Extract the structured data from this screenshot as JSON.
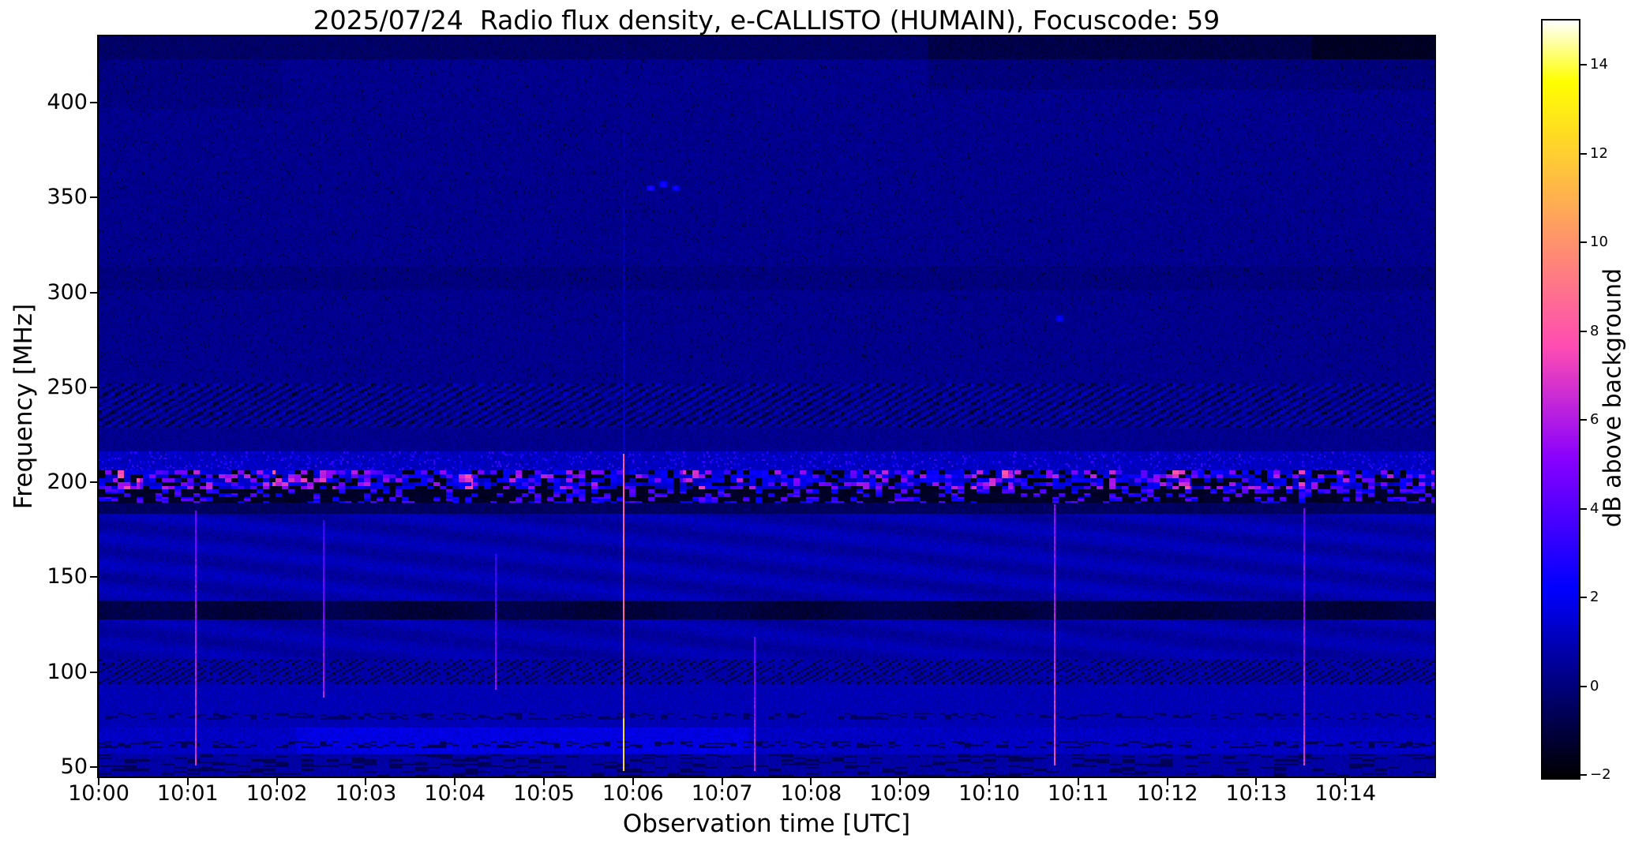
{
  "figure": {
    "background": "#ffffff"
  },
  "observation": {
    "date": "2025/07/24",
    "instrument": "e-CALLISTO",
    "station": "HUMAIN",
    "focuscode": "59",
    "start_time_utc": "10:00",
    "end_time_utc": "10:15"
  },
  "chart_data": {
    "type": "heatmap",
    "title": "2025/07/24  Radio flux density, e-CALLISTO (HUMAIN), Focuscode: 59",
    "xlabel": "Observation time [UTC]",
    "ylabel": "Frequency [MHz]",
    "colorbar_label": "dB above background",
    "colormap": "gnuplot2",
    "value_range": [
      -2,
      15
    ],
    "colorbar_ticks": [
      -2,
      0,
      2,
      4,
      6,
      8,
      10,
      12,
      14
    ],
    "x_range_minutes": [
      0,
      15
    ],
    "x_ticks": [
      "10:00",
      "10:01",
      "10:02",
      "10:03",
      "10:04",
      "10:05",
      "10:06",
      "10:07",
      "10:08",
      "10:09",
      "10:10",
      "10:11",
      "10:12",
      "10:13",
      "10:14"
    ],
    "y_range_mhz": [
      45,
      435
    ],
    "y_ticks": [
      50,
      100,
      150,
      200,
      250,
      300,
      350,
      400
    ],
    "background_level_db": 0.8,
    "features": {
      "horizontal_bands": [
        {
          "f_lo": 196,
          "f_hi": 206,
          "type": "strong-intermittent-rfi",
          "peak_db": 8
        },
        {
          "f_lo": 189,
          "f_hi": 196,
          "type": "dark-absorbed-band",
          "level_db": -1.6
        },
        {
          "f_lo": 206,
          "f_hi": 216,
          "type": "elevated-blue-speckle",
          "level_db": 1.5
        },
        {
          "f_lo": 229,
          "f_hi": 252,
          "type": "speckled-comb",
          "level_db": 0.5
        },
        {
          "f_lo": 127,
          "f_hi": 137,
          "type": "dark-line",
          "level_db": -0.9
        },
        {
          "f_lo": 93,
          "f_hi": 106,
          "type": "dashed-dark",
          "level_db": -0.5
        },
        {
          "f_lo": 56,
          "f_hi": 70,
          "type": "bright-blue-band",
          "level_db": 1.6
        },
        {
          "f_lo": 302,
          "f_hi": 314,
          "type": "faint-dark-band",
          "level_db": 0.1
        }
      ],
      "bright_rfi_windows_min": [
        [
          0.15,
          0.45
        ],
        [
          1.95,
          2.65
        ],
        [
          4.0,
          4.2
        ],
        [
          6.55,
          6.8
        ],
        [
          9.8,
          10.25
        ],
        [
          12.05,
          12.25
        ],
        [
          13.3,
          13.75
        ]
      ],
      "vertical_streaks": [
        {
          "t_min": 1.08,
          "f_lo": 50,
          "f_hi": 185,
          "amp_db": 7.0
        },
        {
          "t_min": 2.52,
          "f_lo": 86,
          "f_hi": 180,
          "amp_db": 6.0
        },
        {
          "t_min": 4.45,
          "f_lo": 90,
          "f_hi": 162,
          "amp_db": 5.5
        },
        {
          "t_min": 5.88,
          "f_lo": 47,
          "f_hi": 432,
          "amp_db": 9.0,
          "low_f_amp_db": 12.5
        },
        {
          "t_min": 7.35,
          "f_lo": 47,
          "f_hi": 118,
          "amp_db": 6.5
        },
        {
          "t_min": 10.72,
          "f_lo": 50,
          "f_hi": 188,
          "amp_db": 7.5
        },
        {
          "t_min": 13.52,
          "f_lo": 50,
          "f_hi": 186,
          "amp_db": 7.0
        }
      ],
      "point_events": [
        {
          "t_min": 6.18,
          "f_mhz": 355,
          "db": 3.2
        },
        {
          "t_min": 6.33,
          "f_mhz": 357,
          "db": 3.0
        },
        {
          "t_min": 6.48,
          "f_mhz": 355,
          "db": 2.8
        },
        {
          "t_min": 10.78,
          "f_mhz": 286,
          "db": 2.6
        }
      ]
    }
  }
}
